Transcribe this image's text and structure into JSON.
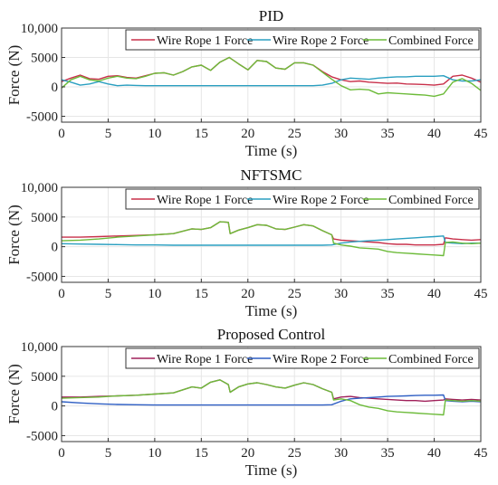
{
  "chart_data": [
    {
      "type": "line",
      "title": "PID",
      "xlabel": "Time (s)",
      "ylabel": "Force (N)",
      "xlim": [
        0,
        45
      ],
      "ylim": [
        -6000,
        10000
      ],
      "xticks": [
        0,
        5,
        10,
        15,
        20,
        25,
        30,
        35,
        40,
        45
      ],
      "yticks": [
        -5000,
        0,
        5000,
        10000
      ],
      "ytick_labels": [
        "-5000",
        "0",
        "5000",
        "10,000"
      ],
      "grid": true,
      "legend_position": "top-right",
      "series": [
        {
          "name": "Wire Rope 1 Force",
          "color": "#c8304a",
          "x": [
            0,
            1,
            2,
            3,
            4,
            5,
            6,
            7,
            8,
            9,
            10,
            11,
            12,
            13,
            14,
            15,
            16,
            17,
            18,
            19,
            20,
            21,
            22,
            23,
            24,
            25,
            26,
            27,
            28,
            29,
            30,
            31,
            32,
            33,
            34,
            35,
            36,
            37,
            38,
            39,
            40,
            41,
            42,
            43,
            44,
            45
          ],
          "y": [
            900,
            1500,
            2000,
            1400,
            1300,
            1800,
            1900,
            1600,
            1500,
            1900,
            2300,
            2400,
            2000,
            2600,
            3400,
            3700,
            2800,
            4200,
            5000,
            3900,
            2900,
            4500,
            4300,
            3200,
            3000,
            4100,
            4100,
            3700,
            2600,
            1700,
            1200,
            900,
            1000,
            800,
            700,
            600,
            650,
            500,
            450,
            400,
            300,
            500,
            1800,
            2000,
            1500,
            800
          ]
        },
        {
          "name": "Wire Rope 2 Force",
          "color": "#2a9fc0",
          "x": [
            0,
            1,
            2,
            3,
            4,
            5,
            6,
            7,
            8,
            9,
            10,
            11,
            12,
            13,
            14,
            15,
            16,
            17,
            18,
            19,
            20,
            21,
            22,
            23,
            24,
            25,
            26,
            27,
            28,
            29,
            30,
            31,
            32,
            33,
            34,
            35,
            36,
            37,
            38,
            39,
            40,
            41,
            42,
            43,
            44,
            45
          ],
          "y": [
            1200,
            800,
            300,
            500,
            900,
            500,
            200,
            300,
            250,
            200,
            200,
            200,
            200,
            200,
            200,
            200,
            200,
            200,
            200,
            200,
            200,
            200,
            200,
            200,
            200,
            200,
            200,
            200,
            300,
            600,
            1200,
            1500,
            1400,
            1300,
            1500,
            1600,
            1700,
            1700,
            1800,
            1800,
            1800,
            1900,
            1200,
            1000,
            1000,
            1200
          ]
        },
        {
          "name": "Combined Force",
          "color": "#6dbb3a",
          "x": [
            0,
            1,
            2,
            3,
            4,
            5,
            6,
            7,
            8,
            9,
            10,
            11,
            12,
            13,
            14,
            15,
            16,
            17,
            18,
            19,
            20,
            21,
            22,
            23,
            24,
            25,
            26,
            27,
            28,
            29,
            30,
            31,
            32,
            33,
            34,
            35,
            36,
            37,
            38,
            39,
            40,
            41,
            42,
            43,
            44,
            45
          ],
          "y": [
            -200,
            1200,
            1800,
            1200,
            1000,
            1500,
            1800,
            1500,
            1400,
            1800,
            2300,
            2400,
            2000,
            2600,
            3400,
            3700,
            2800,
            4200,
            5000,
            3900,
            2900,
            4500,
            4300,
            3200,
            3000,
            4100,
            4100,
            3700,
            2500,
            1300,
            200,
            -500,
            -400,
            -500,
            -1200,
            -1000,
            -1100,
            -1200,
            -1300,
            -1400,
            -1600,
            -1200,
            800,
            1400,
            600,
            -600
          ]
        }
      ]
    },
    {
      "type": "line",
      "title": "NFTSMC",
      "xlabel": "Time (s)",
      "ylabel": "Force (N)",
      "xlim": [
        0,
        45
      ],
      "ylim": [
        -6000,
        10000
      ],
      "xticks": [
        0,
        5,
        10,
        15,
        20,
        25,
        30,
        35,
        40,
        45
      ],
      "yticks": [
        -5000,
        0,
        5000,
        10000
      ],
      "ytick_labels": [
        "-5000",
        "0",
        "5000",
        "10,000"
      ],
      "grid": true,
      "legend_position": "top-right",
      "series": [
        {
          "name": "Wire Rope 1 Force",
          "color": "#c8304a",
          "x": [
            0,
            2,
            4,
            6,
            8,
            10,
            12,
            14,
            15,
            16,
            17,
            17.9,
            18.1,
            19,
            20,
            21,
            22,
            23,
            24,
            25,
            26,
            27,
            28,
            29,
            29.2,
            30,
            31,
            32,
            33,
            34,
            35,
            36,
            37,
            38,
            39,
            40,
            41,
            41.2,
            42,
            43,
            44,
            45
          ],
          "y": [
            1600,
            1600,
            1700,
            1800,
            1900,
            2000,
            2200,
            3000,
            2900,
            3200,
            4200,
            4100,
            2200,
            2800,
            3200,
            3700,
            3600,
            3000,
            2900,
            3300,
            3700,
            3500,
            2700,
            2000,
            1300,
            1100,
            1000,
            900,
            800,
            700,
            500,
            400,
            400,
            300,
            300,
            300,
            400,
            1500,
            1300,
            1200,
            1100,
            1200
          ]
        },
        {
          "name": "Wire Rope 2 Force",
          "color": "#2a9fc0",
          "x": [
            0,
            2,
            4,
            6,
            8,
            10,
            12,
            14,
            16,
            18,
            20,
            22,
            24,
            26,
            28,
            29,
            30,
            31,
            32,
            33,
            34,
            35,
            36,
            37,
            38,
            39,
            40,
            41,
            41.2,
            42,
            43,
            44,
            45
          ],
          "y": [
            500,
            450,
            400,
            350,
            300,
            300,
            250,
            250,
            250,
            250,
            250,
            250,
            250,
            250,
            250,
            300,
            600,
            800,
            900,
            1000,
            1100,
            1200,
            1300,
            1400,
            1500,
            1600,
            1700,
            1800,
            700,
            600,
            500,
            600,
            600
          ]
        },
        {
          "name": "Combined Force",
          "color": "#6dbb3a",
          "x": [
            0,
            2,
            4,
            6,
            8,
            10,
            12,
            14,
            15,
            16,
            17,
            17.9,
            18.1,
            19,
            20,
            21,
            22,
            23,
            24,
            25,
            26,
            27,
            28,
            29,
            29.2,
            30,
            31,
            32,
            33,
            34,
            35,
            36,
            37,
            38,
            39,
            40,
            41,
            41.2,
            42,
            43,
            44,
            45
          ],
          "y": [
            1000,
            1100,
            1300,
            1600,
            1800,
            2000,
            2200,
            3000,
            2900,
            3200,
            4200,
            4100,
            2200,
            2800,
            3200,
            3700,
            3600,
            3000,
            2900,
            3300,
            3700,
            3500,
            2700,
            2000,
            600,
            300,
            100,
            -200,
            -300,
            -400,
            -800,
            -1000,
            -1100,
            -1200,
            -1300,
            -1400,
            -1500,
            700,
            800,
            600,
            500,
            600
          ]
        }
      ]
    },
    {
      "type": "line",
      "title": "Proposed Control",
      "xlabel": "Time (s)",
      "ylabel": "Force (N)",
      "xlim": [
        0,
        45
      ],
      "ylim": [
        -6000,
        10000
      ],
      "xticks": [
        0,
        5,
        10,
        15,
        20,
        25,
        30,
        35,
        40,
        45
      ],
      "yticks": [
        -5000,
        0,
        5000,
        10000
      ],
      "ytick_labels": [
        "-5000",
        "0",
        "5000",
        "10,000"
      ],
      "grid": true,
      "legend_position": "top-right",
      "series": [
        {
          "name": "Wire Rope 1 Force",
          "color": "#a0205a",
          "x": [
            0,
            2,
            4,
            6,
            8,
            10,
            12,
            14,
            15,
            16,
            17,
            17.9,
            18.1,
            19,
            20,
            21,
            22,
            23,
            24,
            25,
            26,
            27,
            28,
            29,
            29.2,
            30,
            31,
            32,
            33,
            34,
            35,
            36,
            37,
            38,
            39,
            40,
            41,
            41.2,
            42,
            43,
            44,
            45
          ],
          "y": [
            1500,
            1500,
            1600,
            1700,
            1800,
            2000,
            2200,
            3200,
            3000,
            4000,
            4400,
            3600,
            2300,
            3200,
            3700,
            3900,
            3600,
            3200,
            3000,
            3500,
            3900,
            3600,
            2900,
            2300,
            1200,
            1500,
            1600,
            1400,
            1300,
            1200,
            1100,
            1000,
            900,
            900,
            800,
            900,
            1000,
            1200,
            1100,
            1000,
            1100,
            1000
          ]
        },
        {
          "name": "Wire Rope 2 Force",
          "color": "#2f5fc4",
          "x": [
            0,
            2,
            4,
            6,
            8,
            10,
            12,
            14,
            16,
            18,
            20,
            22,
            24,
            26,
            28,
            29,
            30,
            31,
            32,
            33,
            34,
            35,
            36,
            37,
            38,
            39,
            40,
            41,
            41.2,
            42,
            43,
            44,
            45
          ],
          "y": [
            700,
            500,
            350,
            250,
            200,
            150,
            150,
            150,
            150,
            150,
            150,
            150,
            150,
            150,
            150,
            200,
            800,
            1200,
            1300,
            1400,
            1500,
            1600,
            1650,
            1700,
            1750,
            1800,
            1800,
            1850,
            900,
            800,
            700,
            800,
            700
          ]
        },
        {
          "name": "Combined Force",
          "color": "#6dbb3a",
          "x": [
            0,
            2,
            4,
            6,
            8,
            10,
            12,
            14,
            15,
            16,
            17,
            17.9,
            18.1,
            19,
            20,
            21,
            22,
            23,
            24,
            25,
            26,
            27,
            28,
            29,
            29.2,
            30,
            31,
            32,
            33,
            34,
            35,
            36,
            37,
            38,
            39,
            40,
            41,
            41.2,
            42,
            43,
            44,
            45
          ],
          "y": [
            1300,
            1400,
            1500,
            1700,
            1800,
            2000,
            2200,
            3200,
            3000,
            4000,
            4400,
            3600,
            2300,
            3200,
            3700,
            3900,
            3600,
            3200,
            3000,
            3500,
            3900,
            3600,
            2900,
            2300,
            1000,
            1200,
            900,
            200,
            -200,
            -400,
            -800,
            -1000,
            -1100,
            -1200,
            -1300,
            -1400,
            -1500,
            1000,
            900,
            800,
            900,
            800
          ]
        }
      ]
    }
  ]
}
